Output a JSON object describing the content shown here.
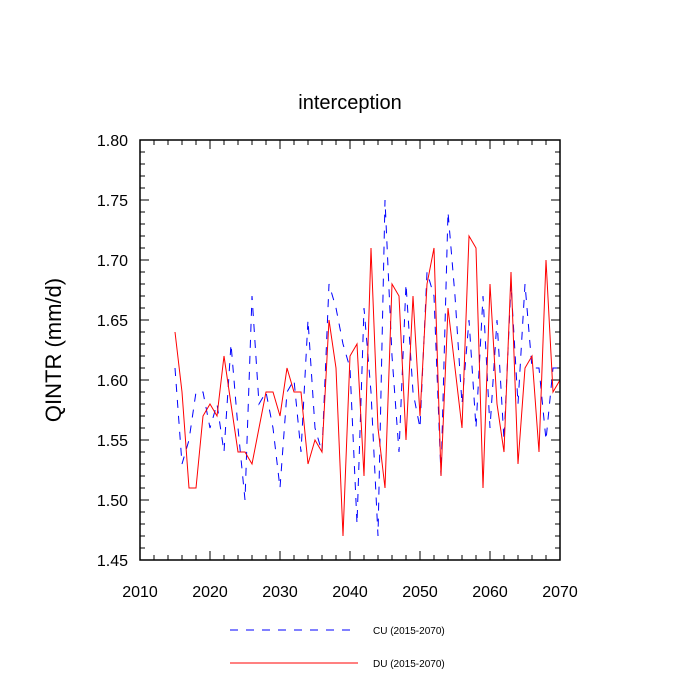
{
  "chart_data": {
    "type": "line",
    "title": "interception",
    "xlabel": "",
    "ylabel": "QINTR  (mm/d)",
    "xlim": [
      2010,
      2070
    ],
    "ylim": [
      1.45,
      1.8
    ],
    "x_ticks": [
      "2010",
      "2020",
      "2030",
      "2040",
      "2050",
      "2060",
      "2070"
    ],
    "y_ticks": [
      "1.45",
      "1.50",
      "1.55",
      "1.60",
      "1.65",
      "1.70",
      "1.75",
      "1.80"
    ],
    "x": [
      2015,
      2016,
      2017,
      2018,
      2019,
      2020,
      2021,
      2022,
      2023,
      2024,
      2025,
      2026,
      2027,
      2028,
      2029,
      2030,
      2031,
      2032,
      2033,
      2034,
      2035,
      2036,
      2037,
      2038,
      2039,
      2040,
      2041,
      2042,
      2043,
      2044,
      2045,
      2046,
      2047,
      2048,
      2049,
      2050,
      2051,
      2052,
      2053,
      2054,
      2055,
      2056,
      2057,
      2058,
      2059,
      2060,
      2061,
      2062,
      2063,
      2064,
      2065,
      2066,
      2067,
      2068,
      2069,
      2070
    ],
    "series": [
      {
        "name": "CU (2015-2070)",
        "color": "#0000ff",
        "style": "dashed",
        "values": [
          1.61,
          1.53,
          1.55,
          1.59,
          1.59,
          1.56,
          1.58,
          1.54,
          1.63,
          1.56,
          1.5,
          1.67,
          1.58,
          1.59,
          1.56,
          1.51,
          1.59,
          1.6,
          1.54,
          1.65,
          1.56,
          1.54,
          1.68,
          1.66,
          1.63,
          1.61,
          1.48,
          1.66,
          1.59,
          1.47,
          1.75,
          1.62,
          1.54,
          1.68,
          1.59,
          1.56,
          1.69,
          1.67,
          1.52,
          1.74,
          1.67,
          1.58,
          1.65,
          1.56,
          1.67,
          1.56,
          1.65,
          1.55,
          1.68,
          1.58,
          1.68,
          1.61,
          1.61,
          1.55,
          1.61,
          1.61
        ]
      },
      {
        "name": "DU (2015-2070)",
        "color": "#ff0000",
        "style": "solid",
        "values": [
          1.64,
          1.59,
          1.51,
          1.51,
          1.57,
          1.58,
          1.57,
          1.62,
          1.58,
          1.54,
          1.54,
          1.53,
          1.56,
          1.59,
          1.59,
          1.57,
          1.61,
          1.59,
          1.59,
          1.53,
          1.55,
          1.54,
          1.65,
          1.61,
          1.47,
          1.62,
          1.63,
          1.52,
          1.71,
          1.56,
          1.51,
          1.68,
          1.67,
          1.55,
          1.67,
          1.57,
          1.68,
          1.71,
          1.52,
          1.66,
          1.61,
          1.56,
          1.72,
          1.71,
          1.51,
          1.68,
          1.58,
          1.54,
          1.69,
          1.53,
          1.61,
          1.62,
          1.54,
          1.7,
          1.59,
          1.6
        ]
      }
    ],
    "legend": [
      "CU (2015-2070)",
      "DU (2015-2070)"
    ],
    "legend_position": "bottom-center"
  }
}
